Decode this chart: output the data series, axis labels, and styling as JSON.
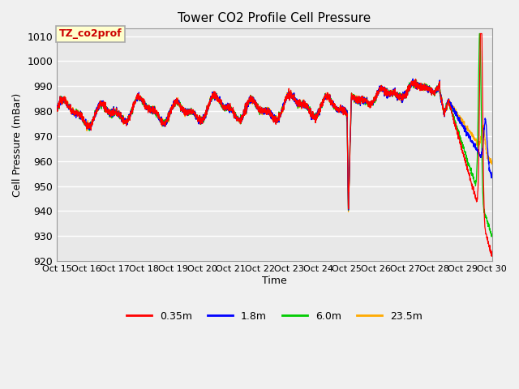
{
  "title": "Tower CO2 Profile Cell Pressure",
  "xlabel": "Time",
  "ylabel": "Cell Pressure (mBar)",
  "ylim": [
    920,
    1013
  ],
  "yticks": [
    920,
    930,
    940,
    950,
    960,
    970,
    980,
    990,
    1000,
    1010
  ],
  "fig_bg": "#f0f0f0",
  "plot_bg": "#e8e8e8",
  "grid_color": "#ffffff",
  "annotation_text": "TZ_co2prof",
  "annotation_bg": "#ffffcc",
  "annotation_border": "#aaaaaa",
  "annotation_text_color": "#cc0000",
  "colors": {
    "0.35m": "#ff0000",
    "1.8m": "#0000ff",
    "6.0m": "#00cc00",
    "23.5m": "#ffaa00"
  },
  "legend_labels": [
    "0.35m",
    "1.8m",
    "6.0m",
    "23.5m"
  ],
  "x_tick_labels": [
    "Oct 15",
    "Oct 16",
    "Oct 17",
    "Oct 18",
    "Oct 19",
    "Oct 20",
    "Oct 21",
    "Oct 22",
    "Oct 23",
    "Oct 24",
    "Oct 25",
    "Oct 26",
    "Oct 27",
    "Oct 28",
    "Oct 29",
    "Oct 30"
  ],
  "seed": 12345
}
